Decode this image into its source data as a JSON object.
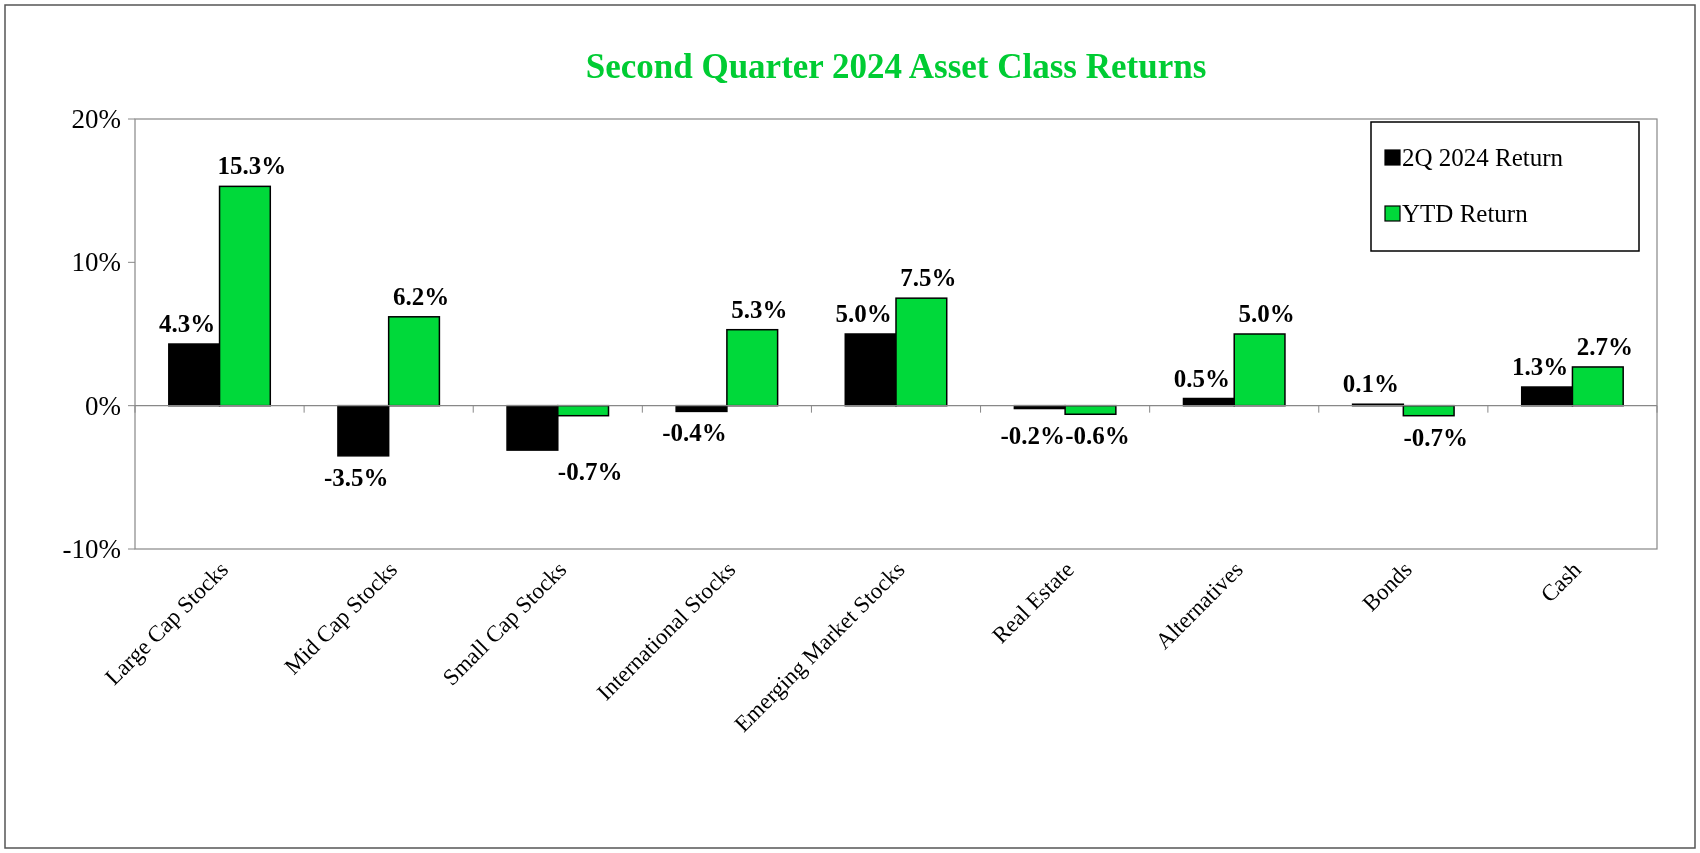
{
  "chart_data": {
    "type": "bar",
    "title": "Second Quarter 2024 Asset Class Returns",
    "categories": [
      "Large Cap Stocks",
      "Mid Cap Stocks",
      "Small Cap Stocks",
      "International Stocks",
      "Emerging Market Stocks",
      "Real Estate",
      "Alternatives",
      "Bonds",
      "Cash"
    ],
    "series": [
      {
        "name": "2Q 2024 Return",
        "color": "#000000",
        "values": [
          4.3,
          -3.5,
          -3.1,
          -0.4,
          5.0,
          -0.2,
          0.5,
          0.1,
          1.3
        ],
        "value_labels": [
          "4.3%",
          "-3.5%",
          null,
          "-0.4%",
          "5.0%",
          "-0.2%",
          "0.5%",
          "0.1%",
          "1.3%"
        ]
      },
      {
        "name": "YTD Return",
        "color": "#00d93a",
        "values": [
          15.3,
          6.2,
          -0.7,
          5.3,
          7.5,
          -0.6,
          5.0,
          -0.7,
          2.7
        ],
        "value_labels": [
          "15.3%",
          "6.2%",
          "-0.7%",
          "5.3%",
          "7.5%",
          "-0.6%",
          "5.0%",
          "-0.7%",
          "2.7%"
        ]
      }
    ],
    "ylim": [
      -10,
      20
    ],
    "yticks": [
      {
        "value": -10,
        "label": "-10%"
      },
      {
        "value": 0,
        "label": "0%"
      },
      {
        "value": 10,
        "label": "10%"
      },
      {
        "value": 20,
        "label": "20%"
      }
    ],
    "legend": "top right"
  }
}
